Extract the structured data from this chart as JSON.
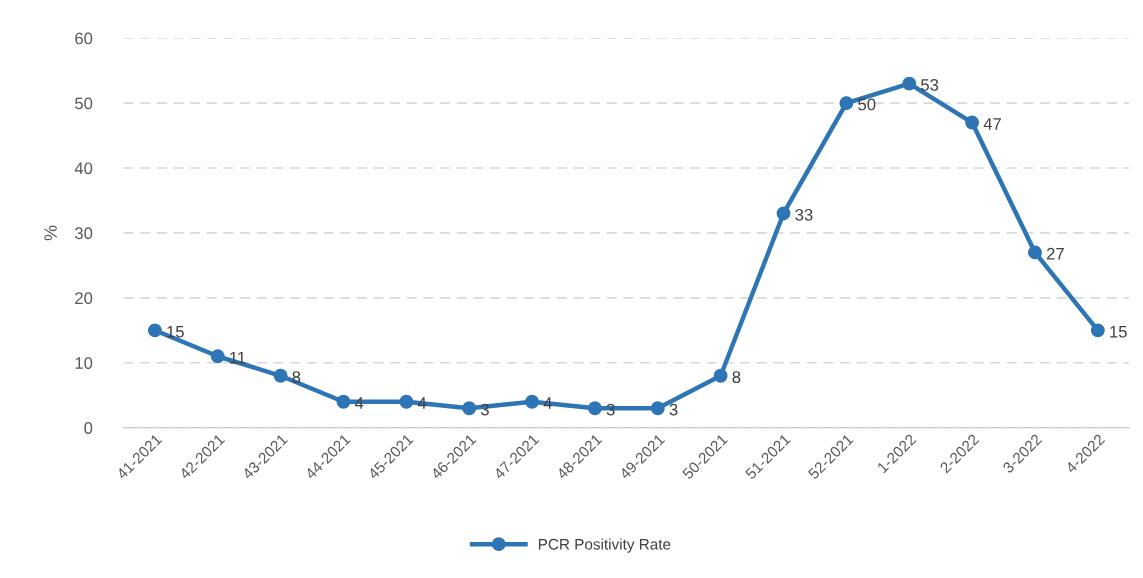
{
  "chart_data": {
    "type": "line",
    "ylabel": "%",
    "categories": [
      "41-2021",
      "42-2021",
      "43-2021",
      "44-2021",
      "45-2021",
      "46-2021",
      "47-2021",
      "48-2021",
      "49-2021",
      "50-2021",
      "51-2021",
      "52-2021",
      "1-2022",
      "2-2022",
      "3-2022",
      "4-2022"
    ],
    "series": [
      {
        "name": "PCR Positivity Rate",
        "color": "#2e75b6",
        "values": [
          15,
          11,
          8,
          4,
          4,
          3,
          4,
          3,
          3,
          8,
          33,
          50,
          53,
          47,
          27,
          15
        ]
      }
    ],
    "ylim": [
      0,
      60
    ],
    "yticks": [
      0,
      10,
      20,
      30,
      40,
      50,
      60
    ],
    "grid": "y",
    "legend": "bottom",
    "marker": "circle",
    "line_style": "solid",
    "data_labels": true
  }
}
